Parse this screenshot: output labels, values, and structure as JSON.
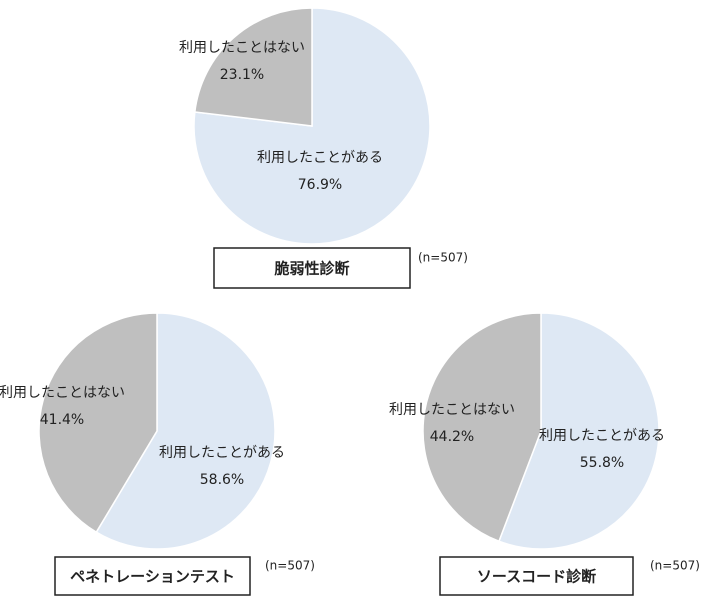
{
  "chart_data": [
    {
      "type": "pie",
      "title": "脆弱性診断",
      "note": "(n=507)",
      "categories": [
        "利用したことがある",
        "利用したことはない"
      ],
      "values": [
        76.9,
        23.1
      ],
      "value_labels": [
        "76.9%",
        "23.1%"
      ],
      "colors": [
        "#dee8f4",
        "#bfbfbf"
      ]
    },
    {
      "type": "pie",
      "title": "ペネトレーションテスト",
      "note": "(n=507)",
      "categories": [
        "利用したことがある",
        "利用したことはない"
      ],
      "values": [
        58.6,
        41.4
      ],
      "value_labels": [
        "58.6%",
        "41.4%"
      ],
      "colors": [
        "#dee8f4",
        "#bfbfbf"
      ]
    },
    {
      "type": "pie",
      "title": "ソースコード診断",
      "note": "(n=507)",
      "categories": [
        "利用したことがある",
        "利用したことはない"
      ],
      "values": [
        55.8,
        44.2
      ],
      "value_labels": [
        "55.8%",
        "44.2%"
      ],
      "colors": [
        "#dee8f4",
        "#bfbfbf"
      ]
    }
  ]
}
